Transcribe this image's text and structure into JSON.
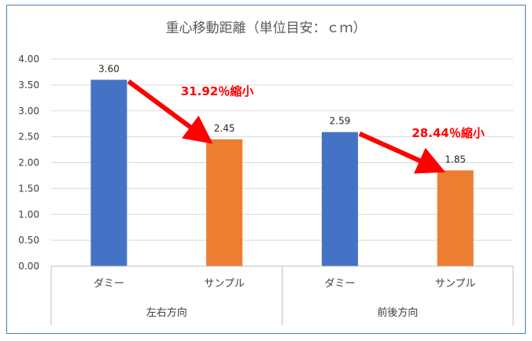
{
  "chart_data": {
    "type": "bar",
    "title": "重心移動距離（単位目安：ｃｍ）",
    "groups": [
      "左右方向",
      "前後方向"
    ],
    "categories": [
      "ダミー",
      "サンプル"
    ],
    "series": [
      {
        "values": [
          3.6,
          2.59
        ],
        "color": "#4472c4"
      },
      {
        "values": [
          2.45,
          1.85
        ],
        "color": "#ed7d31"
      }
    ],
    "value_labels": [
      [
        "3.60",
        "2.45"
      ],
      [
        "2.59",
        "1.85"
      ]
    ],
    "ylim": [
      0,
      4
    ],
    "yticks": [
      "0.00",
      "0.50",
      "1.00",
      "1.50",
      "2.00",
      "2.50",
      "3.00",
      "3.50",
      "4.00"
    ],
    "grid": true,
    "annotations": [
      {
        "text": "31.92％縮小",
        "color": "#ff0000"
      },
      {
        "text": "28.44％縮小",
        "color": "#ff0000"
      }
    ]
  }
}
